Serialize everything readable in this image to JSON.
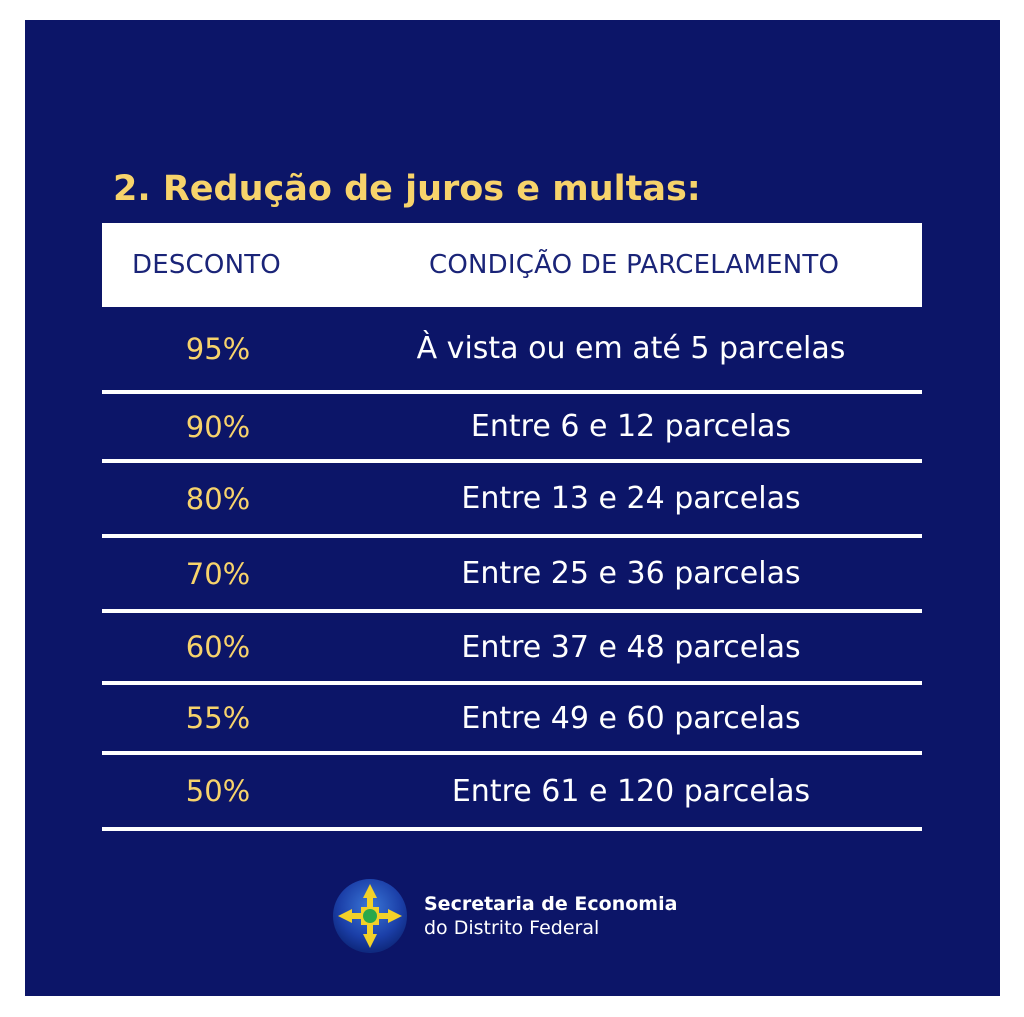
{
  "title": "2. Redução de juros e multas:",
  "table": {
    "headers": [
      "DESCONTO",
      "CONDIÇÃO DE PARCELAMENTO"
    ],
    "rows": [
      {
        "desconto": "95%",
        "condicao": "À vista ou em até 5 parcelas"
      },
      {
        "desconto": "90%",
        "condicao": "Entre 6 e 12 parcelas"
      },
      {
        "desconto": "80%",
        "condicao": "Entre 13 e 24 parcelas"
      },
      {
        "desconto": "70%",
        "condicao": "Entre 25 e 36 parcelas"
      },
      {
        "desconto": "60%",
        "condicao": "Entre 37 e 48 parcelas"
      },
      {
        "desconto": "55%",
        "condicao": "Entre 49 e 60 parcelas"
      },
      {
        "desconto": "50%",
        "condicao": "Entre 61 e 120 parcelas"
      }
    ]
  },
  "footer": {
    "logo_icon": "df-emblem-icon",
    "line1": "Secretaria de Economia",
    "line2": "do Distrito Federal"
  },
  "colors": {
    "background": "#0c1568",
    "accent": "#f7d36b",
    "text": "#ffffff"
  }
}
